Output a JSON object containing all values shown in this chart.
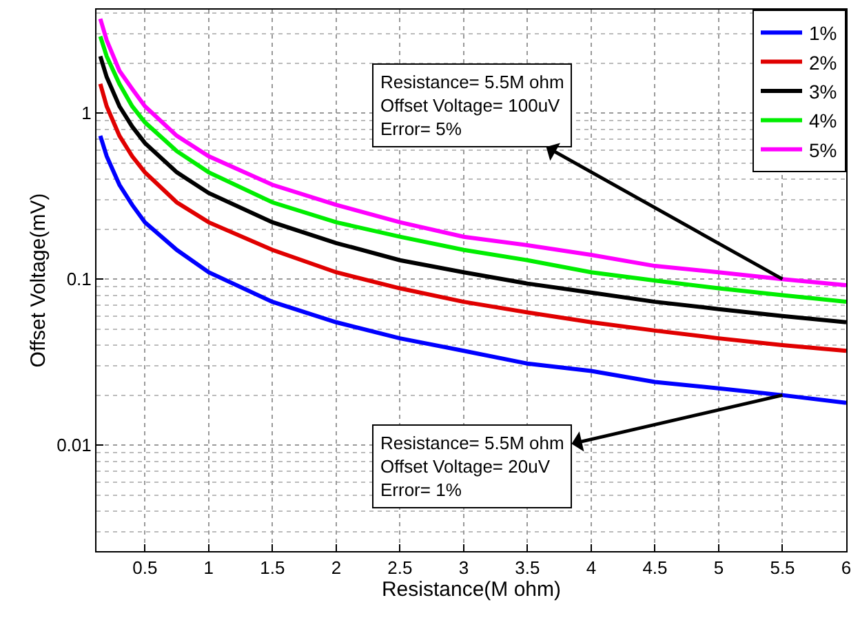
{
  "chart_data": {
    "type": "line",
    "xlabel": "Resistance(M ohm)",
    "ylabel": "Offset Voltage(mV)",
    "x": [
      0.15,
      0.2,
      0.3,
      0.4,
      0.5,
      0.75,
      1,
      1.5,
      2,
      2.5,
      3,
      3.5,
      4,
      4.5,
      5,
      5.5,
      6
    ],
    "series": [
      {
        "name": "1%",
        "color": "#0000ff",
        "values": [
          0.73,
          0.55,
          0.37,
          0.28,
          0.22,
          0.15,
          0.11,
          0.073,
          0.055,
          0.044,
          0.037,
          0.031,
          0.028,
          0.024,
          0.022,
          0.02,
          0.018
        ]
      },
      {
        "name": "2%",
        "color": "#e00000",
        "values": [
          1.5,
          1.1,
          0.73,
          0.55,
          0.44,
          0.29,
          0.22,
          0.15,
          0.11,
          0.088,
          0.073,
          0.063,
          0.055,
          0.049,
          0.044,
          0.04,
          0.037
        ]
      },
      {
        "name": "3%",
        "color": "#000000",
        "values": [
          2.2,
          1.65,
          1.1,
          0.83,
          0.66,
          0.44,
          0.33,
          0.22,
          0.165,
          0.13,
          0.11,
          0.094,
          0.083,
          0.073,
          0.066,
          0.06,
          0.055
        ]
      },
      {
        "name": "4%",
        "color": "#00ee00",
        "values": [
          2.9,
          2.2,
          1.5,
          1.1,
          0.88,
          0.59,
          0.44,
          0.29,
          0.22,
          0.18,
          0.15,
          0.13,
          0.11,
          0.098,
          0.088,
          0.08,
          0.073
        ]
      },
      {
        "name": "5%",
        "color": "#ff00ff",
        "values": [
          3.7,
          2.75,
          1.8,
          1.4,
          1.1,
          0.73,
          0.55,
          0.37,
          0.28,
          0.22,
          0.18,
          0.16,
          0.14,
          0.12,
          0.11,
          0.1,
          0.092
        ]
      }
    ],
    "xlim": [
      0.12,
      6
    ],
    "xticks": [
      0.5,
      1,
      1.5,
      2,
      2.5,
      3,
      3.5,
      4,
      4.5,
      5,
      5.5,
      6
    ],
    "ylim": [
      0.0023,
      4.2
    ],
    "yticks": [
      0.01,
      0.1,
      1
    ],
    "log": "y",
    "grid": true,
    "legend": "top right",
    "marker": "none",
    "line_style": "solid",
    "annotations": [
      {
        "text": "Resistance= 5.5M ohm\nOffset Voltage= 100uV\nError= 5%",
        "x": 5.5,
        "y": 0.1
      },
      {
        "text": "Resistance= 5.5M ohm\nOffset Voltage= 20uV\nError= 1%",
        "x": 5.5,
        "y": 0.02
      }
    ]
  }
}
